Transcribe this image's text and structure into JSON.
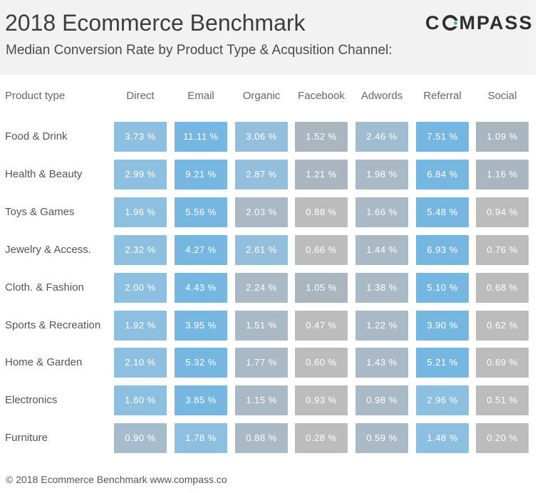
{
  "header": {
    "title": "2018 Ecommerce Benchmark",
    "subtitle": "Median Conversion Rate by Product Type & Acqusition Channel:",
    "logo_before": "C",
    "logo_after": "MPASS"
  },
  "chart_data": {
    "type": "heatmap",
    "row_header": "Product type",
    "columns": [
      "Direct",
      "Email",
      "Organic",
      "Facebook",
      "Adwords",
      "Referral",
      "Social"
    ],
    "rows": [
      {
        "label": "Food & Drink",
        "values": [
          "3.73 %",
          "11.11 %",
          "3.06 %",
          "1.52 %",
          "2.46 %",
          "7.51 %",
          "1.09 %"
        ]
      },
      {
        "label": "Health & Beauty",
        "values": [
          "2.99 %",
          "9.21 %",
          "2.87 %",
          "1.21 %",
          "1.98 %",
          "6.84 %",
          "1.16 %"
        ]
      },
      {
        "label": "Toys & Games",
        "values": [
          "1.96 %",
          "5.56 %",
          "2.03 %",
          "0.88 %",
          "1.66 %",
          "5.48 %",
          "0.94 %"
        ]
      },
      {
        "label": "Jewelry & Access.",
        "values": [
          "2.32 %",
          "4.27 %",
          "2.61 %",
          "0.66 %",
          "1.44 %",
          "6.93 %",
          "0.76 %"
        ]
      },
      {
        "label": "Cloth. & Fashion",
        "values": [
          "2.00 %",
          "4.43 %",
          "2.24 %",
          "1.05 %",
          "1.38 %",
          "5.10 %",
          "0.68 %"
        ]
      },
      {
        "label": "Sports & Recreation",
        "values": [
          "1.92 %",
          "3.95 %",
          "1.51 %",
          "0.47 %",
          "1.22 %",
          "3.90 %",
          "0.62 %"
        ]
      },
      {
        "label": "Home & Garden",
        "values": [
          "2.10 %",
          "5.32 %",
          "1.77 %",
          "0.60 %",
          "1.43 %",
          "5.21 %",
          "0.69 %"
        ]
      },
      {
        "label": "Electronics",
        "values": [
          "1.60 %",
          "3.85 %",
          "1.15 %",
          "0.93 %",
          "0.98 %",
          "2.96 %",
          "0.51 %"
        ]
      },
      {
        "label": "Furniture",
        "values": [
          "0.90 %",
          "1.78 %",
          "0.88 %",
          "0.28 %",
          "0.59 %",
          "1.48 %",
          "0.20 %"
        ]
      }
    ],
    "colors": {
      "low": "#bcbcbc",
      "mid": "#a9b9c5",
      "high": "#78b8e0"
    }
  },
  "footer": {
    "text": "© 2018 Ecommerce Benchmark www.compass.co"
  }
}
